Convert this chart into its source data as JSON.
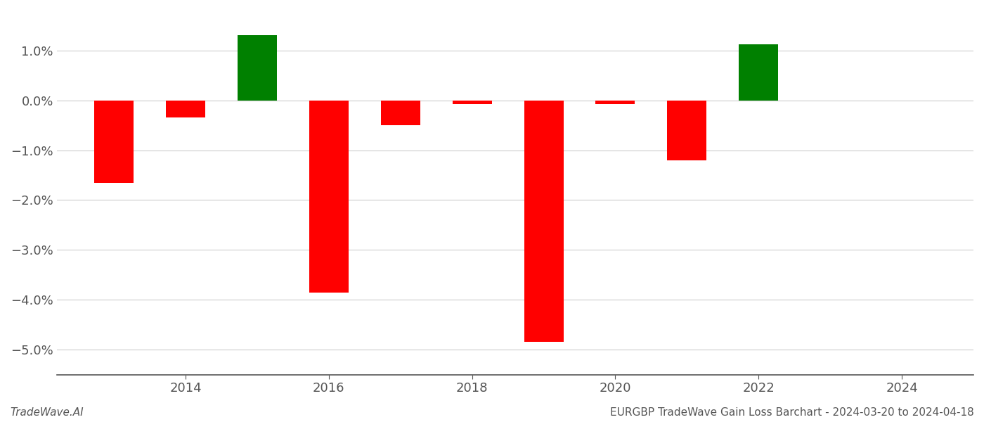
{
  "years": [
    2013,
    2014,
    2015,
    2016,
    2017,
    2018,
    2019,
    2020,
    2021,
    2022,
    2023
  ],
  "values": [
    -0.0165,
    -0.0035,
    0.013,
    -0.0385,
    -0.005,
    -0.0007,
    -0.0485,
    -0.0007,
    -0.012,
    0.0112,
    0.0
  ],
  "bar_width": 0.55,
  "colors_positive": "#008000",
  "colors_negative": "#ff0000",
  "ylim_min": -0.055,
  "ylim_max": 0.018,
  "yticks": [
    -0.05,
    -0.04,
    -0.03,
    -0.02,
    -0.01,
    0.0,
    0.01
  ],
  "xticks": [
    2014,
    2016,
    2018,
    2020,
    2022,
    2024
  ],
  "xlim_min": 2012.2,
  "xlim_max": 2025.0,
  "footer_left": "TradeWave.AI",
  "footer_right": "EURGBP TradeWave Gain Loss Barchart - 2024-03-20 to 2024-04-18",
  "bg_color": "#ffffff",
  "grid_color": "#cccccc",
  "spine_color": "#555555",
  "tick_label_color": "#555555",
  "footer_color": "#555555",
  "footer_fontsize": 11,
  "tick_fontsize": 13
}
